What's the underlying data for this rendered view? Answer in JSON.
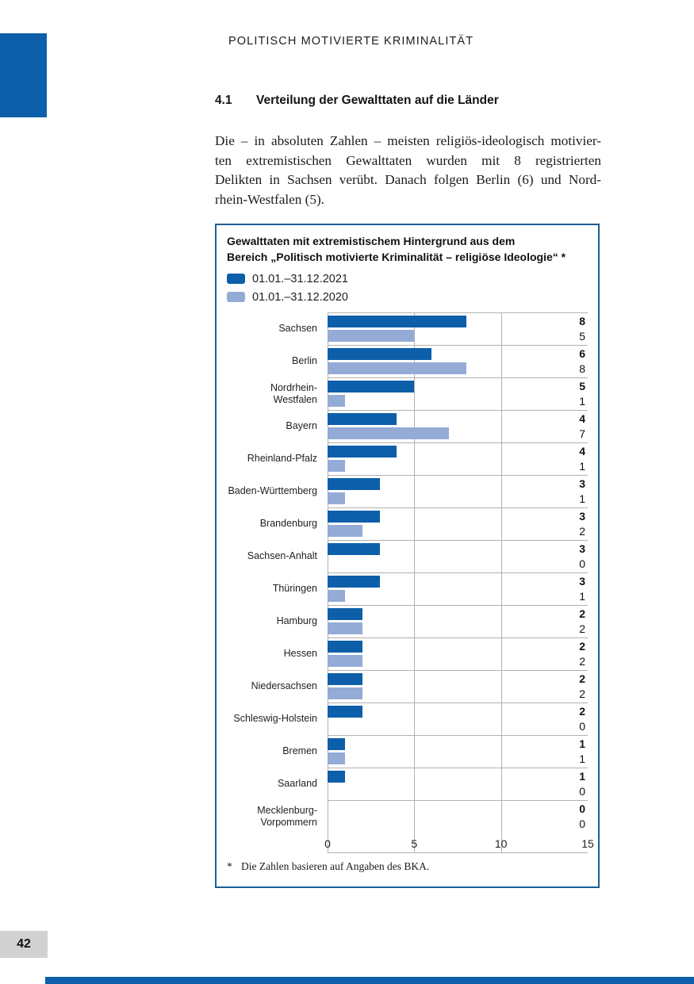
{
  "page": {
    "header_title": "POLITISCH MOTIVIERTE KRIMINALITÄT",
    "page_number": "42"
  },
  "section": {
    "number": "4.1",
    "title": "Verteilung der Gewalttaten auf die Länder"
  },
  "paragraph_lines": [
    "Die – in absoluten Zahlen – meisten religiös-ideologisch motivier-",
    "ten extremistischen Gewalttaten wurden mit 8 registrierten",
    "Delikten in Sachsen verübt. Danach folgen Berlin (6) und Nord-",
    "rhein-Westfalen (5)."
  ],
  "chart": {
    "title_lines": [
      "Gewalttaten mit extremistischem Hintergrund aus dem",
      "Bereich „Politisch motivierte Kriminalität – religiöse Ideologie“ *"
    ],
    "legend": [
      {
        "label": "01.01.–31.12.2021"
      },
      {
        "label": "01.01.–31.12.2020"
      }
    ],
    "footnote_star": "*",
    "footnote_text": "Die Zahlen basieren auf Angaben des BKA."
  },
  "chart_data": {
    "type": "bar",
    "orientation": "horizontal",
    "title": "Gewalttaten mit extremistischem Hintergrund aus dem Bereich „Politisch motivierte Kriminalität – religiöse Ideologie“ *",
    "categories": [
      "Sachsen",
      "Berlin",
      "Nordrhein-Westfalen",
      "Bayern",
      "Rheinland-Pfalz",
      "Baden-Württemberg",
      "Brandenburg",
      "Sachsen-Anhalt",
      "Thüringen",
      "Hamburg",
      "Hessen",
      "Niedersachsen",
      "Schleswig-Holstein",
      "Bremen",
      "Saarland",
      "Mecklenburg-Vorpommern"
    ],
    "series": [
      {
        "name": "01.01.–31.12.2021",
        "values": [
          8,
          6,
          5,
          4,
          4,
          3,
          3,
          3,
          3,
          2,
          2,
          2,
          2,
          1,
          1,
          0
        ]
      },
      {
        "name": "01.01.–31.12.2020",
        "values": [
          5,
          8,
          1,
          7,
          1,
          1,
          2,
          0,
          1,
          2,
          2,
          2,
          0,
          1,
          0,
          0
        ]
      }
    ],
    "xlim": [
      0,
      15
    ],
    "xticks": [
      0,
      5,
      10,
      15
    ],
    "grid": true,
    "legend_position": "top-left",
    "value_labels": "right",
    "footnote": "* Die Zahlen basieren auf Angaben des BKA."
  },
  "colors": {
    "series_2021": "#0d5fa9",
    "series_2020": "#94abd6",
    "box_border": "#1b5e94",
    "gridline": "#b2b2b2",
    "page_number_bg": "#d1d1d1",
    "corner_mark": "#0d5fa9"
  }
}
